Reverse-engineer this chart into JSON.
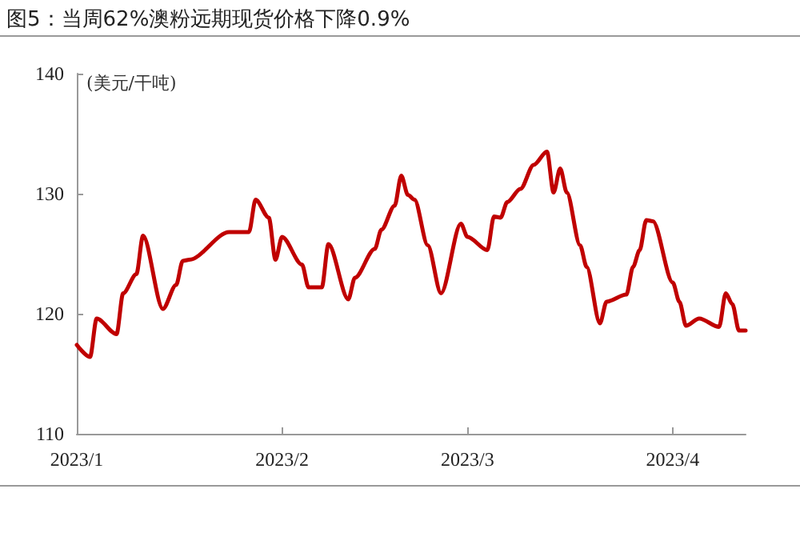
{
  "chart_data": {
    "type": "line",
    "title": "图5：当周62%澳粉远期现货价格下降0.9%",
    "ylabel": "(美元/干吨)",
    "x": [
      "2023-01-01",
      "2023-01-03",
      "2023-01-04",
      "2023-01-07",
      "2023-01-08",
      "2023-01-10",
      "2023-01-11",
      "2023-01-14",
      "2023-01-16",
      "2023-01-17",
      "2023-01-18",
      "2023-01-24",
      "2023-01-27",
      "2023-01-28",
      "2023-01-30",
      "2023-01-31",
      "2023-02-01",
      "2023-02-04",
      "2023-02-05",
      "2023-02-07",
      "2023-02-08",
      "2023-02-11",
      "2023-02-12",
      "2023-02-15",
      "2023-02-16",
      "2023-02-18",
      "2023-02-19",
      "2023-02-20",
      "2023-02-21",
      "2023-02-23",
      "2023-02-25",
      "2023-02-28",
      "2023-03-01",
      "2023-03-04",
      "2023-03-05",
      "2023-03-06",
      "2023-03-07",
      "2023-03-09",
      "2023-03-11",
      "2023-03-13",
      "2023-03-14",
      "2023-03-15",
      "2023-03-16",
      "2023-03-18",
      "2023-03-19",
      "2023-03-21",
      "2023-03-22",
      "2023-03-25",
      "2023-03-26",
      "2023-03-27",
      "2023-03-28",
      "2023-03-29",
      "2023-04-01",
      "2023-04-02",
      "2023-04-03",
      "2023-04-05",
      "2023-04-08",
      "2023-04-09",
      "2023-04-10",
      "2023-04-11",
      "2023-04-12"
    ],
    "series": [
      {
        "color": "#c00000",
        "values": [
          117.4,
          116.4,
          119.6,
          118.3,
          121.7,
          123.3,
          126.5,
          120.4,
          122.4,
          124.4,
          124.5,
          126.8,
          126.8,
          129.5,
          128,
          124.5,
          126.4,
          124.1,
          122.2,
          122.2,
          125.8,
          121.2,
          123,
          125.4,
          127,
          129,
          131.5,
          129.9,
          129.5,
          125.7,
          121.7,
          127.5,
          126.4,
          125.3,
          128.1,
          128,
          129.3,
          130.4,
          132.4,
          133.5,
          130.1,
          132.1,
          130.1,
          125.7,
          123.9,
          119.2,
          121,
          121.6,
          123.9,
          125.3,
          127.8,
          127.7,
          122.6,
          121,
          119,
          119.6,
          118.9,
          121.7,
          120.8,
          118.6,
          118.6
        ]
      }
    ],
    "xlim": [
      "2023-01-01",
      "2023-04-12"
    ],
    "xticks": [
      {
        "value": "2023-01",
        "label": "2023/1"
      },
      {
        "value": "2023-02",
        "label": "2023/2"
      },
      {
        "value": "2023-03",
        "label": "2023/3"
      },
      {
        "value": "2023-04",
        "label": "2023/4"
      }
    ],
    "ylim": [
      110,
      140
    ],
    "yticks": [
      110,
      120,
      130,
      140
    ],
    "grid": false,
    "marker": "none",
    "line_style": "solid"
  }
}
